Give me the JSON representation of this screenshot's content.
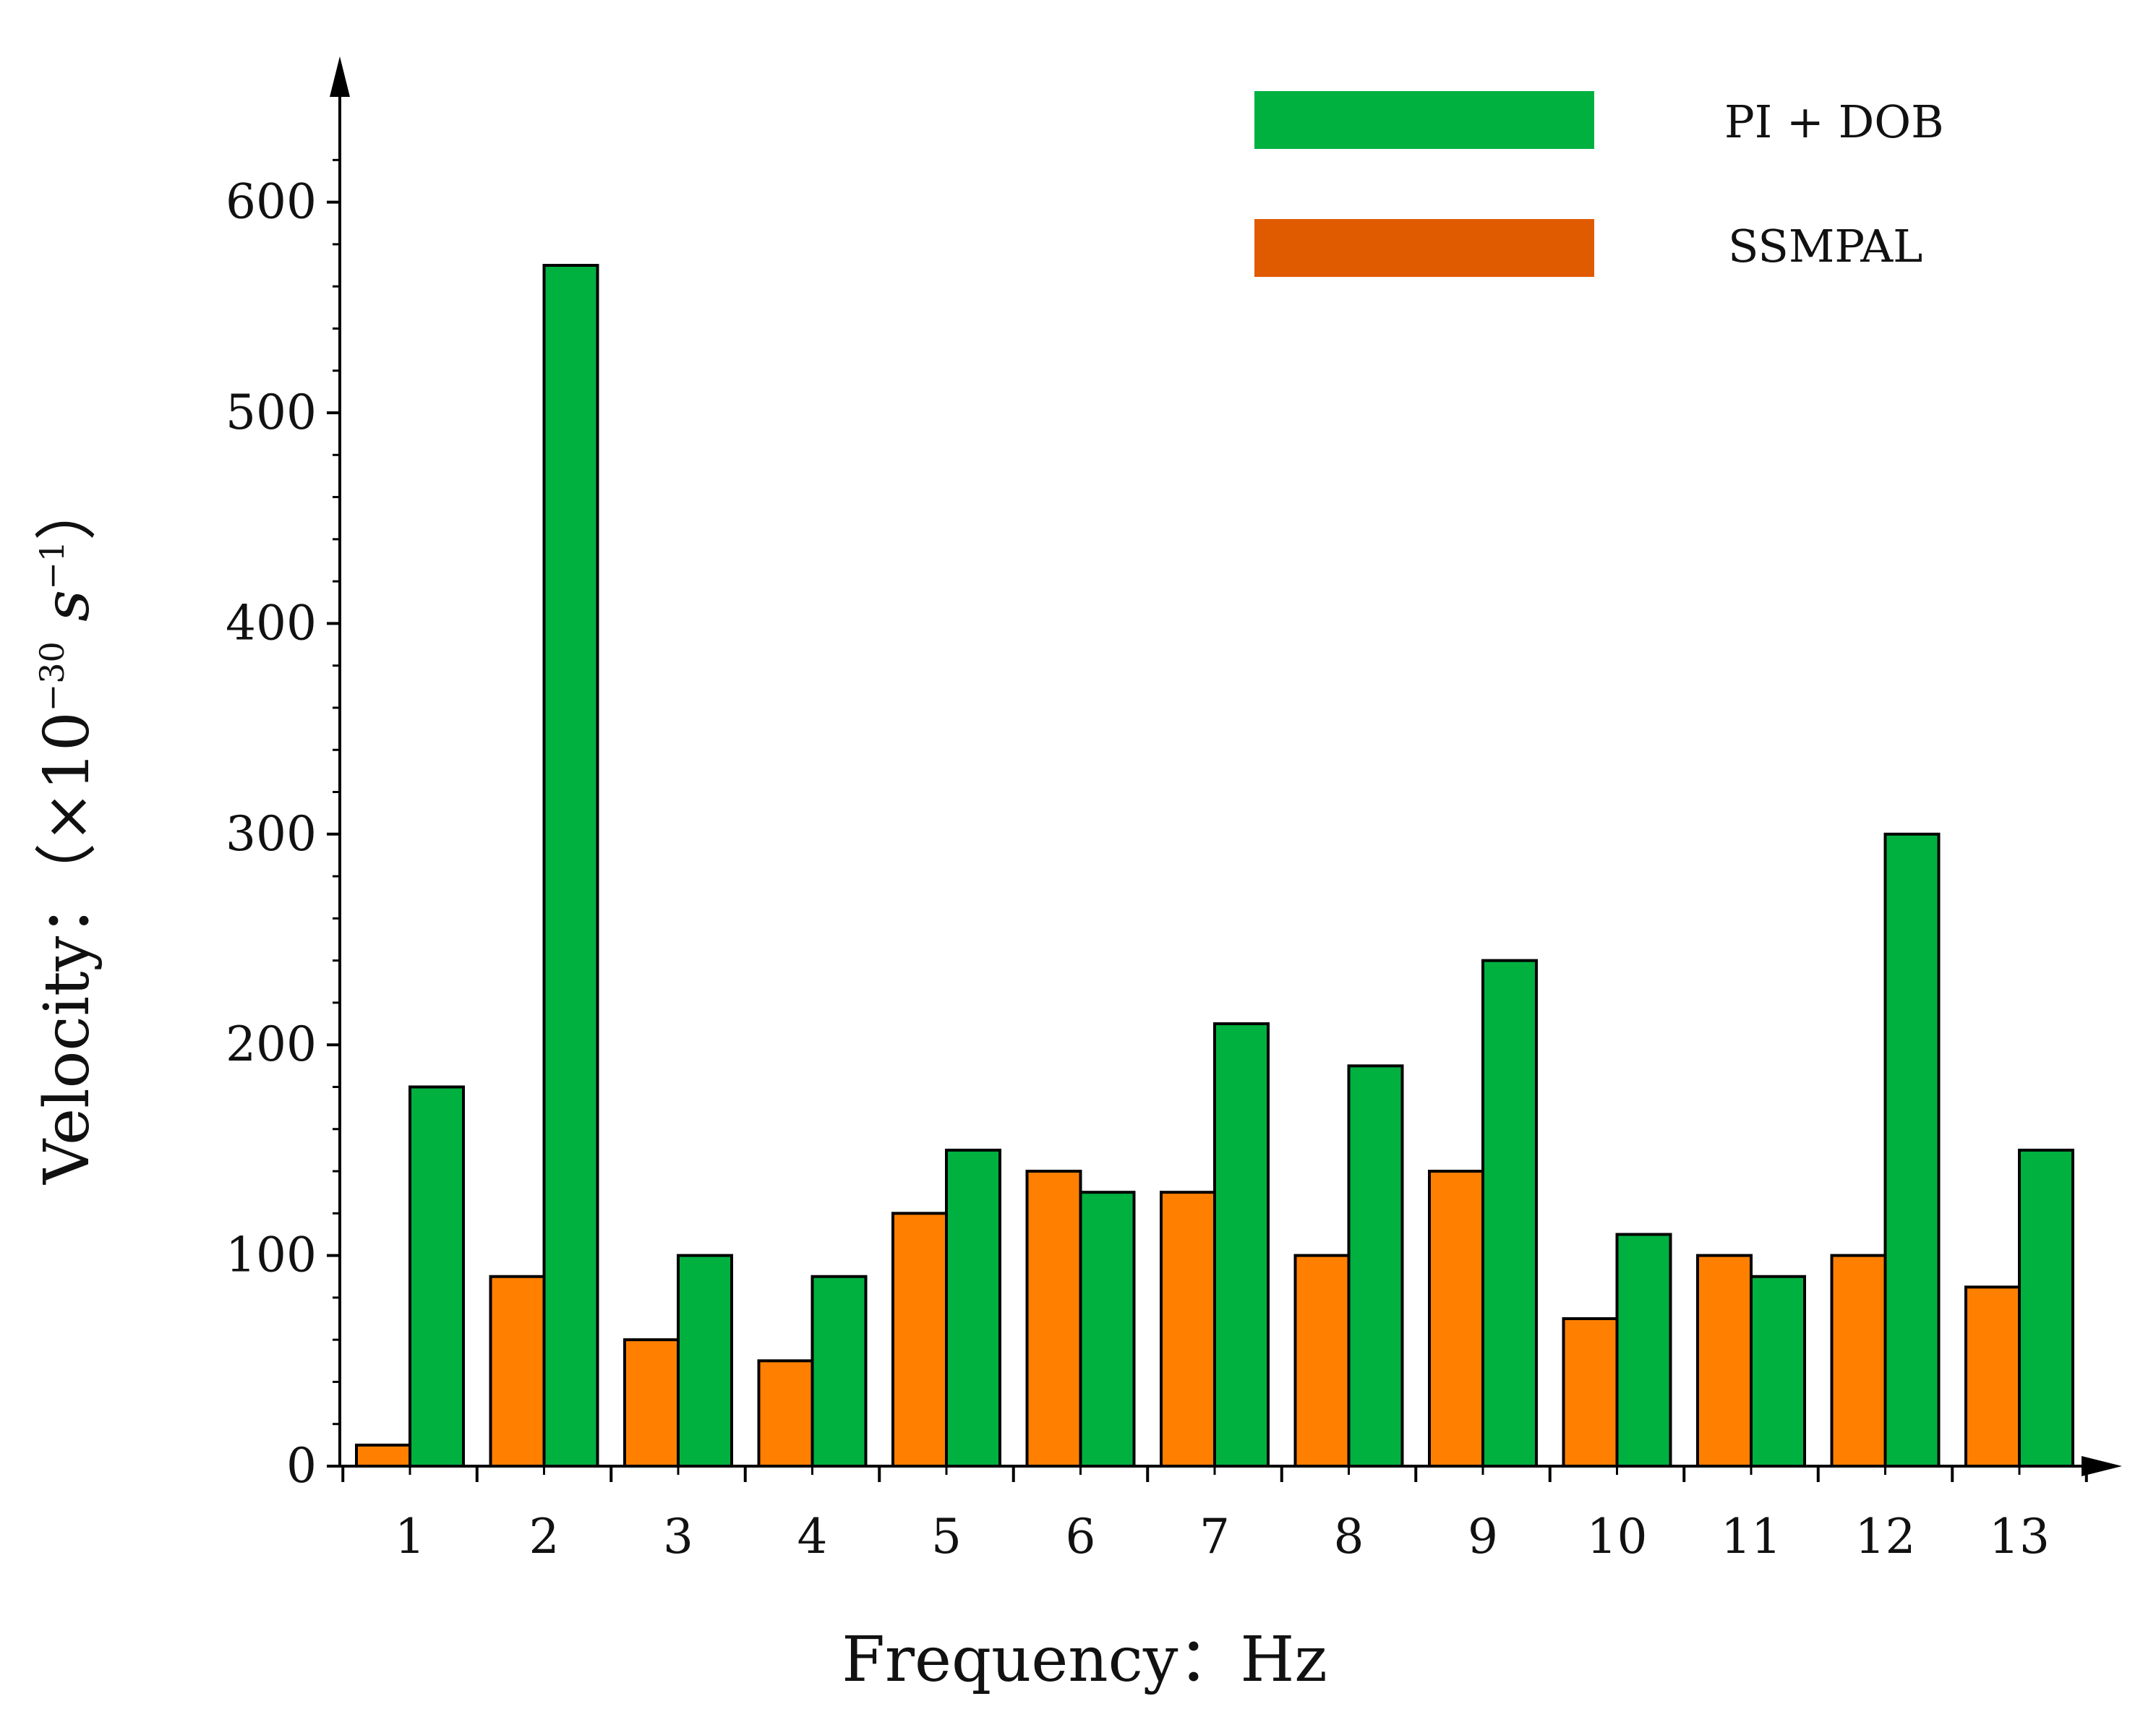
{
  "chart_data": {
    "type": "bar",
    "title": "",
    "xlabel": "Frequency：Hz",
    "ylabel": "Velocity：（×10⁻³⁰ s⁻¹）",
    "ylabel_parts": {
      "main": "Velocity：（×10",
      "exp1": "−30",
      "unit": " s",
      "exp2": "−1",
      "close": "）"
    },
    "categories": [
      "1",
      "2",
      "3",
      "4",
      "5",
      "6",
      "7",
      "8",
      "9",
      "10",
      "11",
      "12",
      "13"
    ],
    "series": [
      {
        "name": "SSMPAL",
        "color": "#FF8000",
        "values": [
          10,
          90,
          60,
          50,
          120,
          140,
          130,
          100,
          140,
          70,
          100,
          100,
          85
        ]
      },
      {
        "name": "PI + DOB",
        "color": "#00B140",
        "values": [
          180,
          570,
          100,
          90,
          150,
          130,
          210,
          190,
          240,
          110,
          90,
          300,
          150
        ]
      }
    ],
    "ylim": [
      0,
      640
    ],
    "yticks": [
      0,
      100,
      200,
      300,
      400,
      500,
      600
    ],
    "legend": {
      "position": "top-right",
      "entries": [
        {
          "label": "PI + DOB",
          "color": "#00B140"
        },
        {
          "label": "SSMPAL",
          "color": "#E05A00"
        }
      ]
    },
    "grid": false
  }
}
